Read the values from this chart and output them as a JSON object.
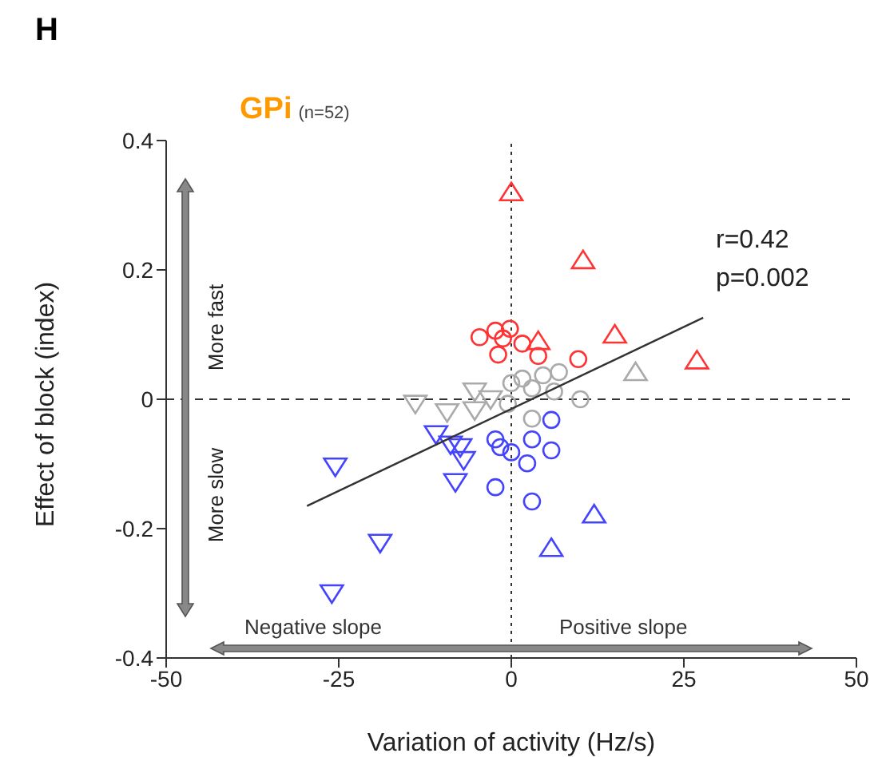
{
  "chart_data": {
    "type": "scatter",
    "title": "GPi",
    "subtitle": "(n=52)",
    "xlabel": "Variation of activity (Hz/s)",
    "ylabel": "Effect of block (index)",
    "annotations": [
      "H",
      "r=0.42",
      "p=0.002",
      "More fast",
      "More slow",
      "Negative slope",
      "Positive slope"
    ],
    "xlim": [
      -50,
      50
    ],
    "xticks": [
      -50,
      -25,
      0,
      25,
      50
    ],
    "ylim": [
      -0.4,
      0.4
    ],
    "yticks": [
      -0.4,
      -0.2,
      0,
      0.2,
      0.4
    ],
    "ref_lines": [
      {
        "axis": "x",
        "value": 0,
        "line_style": "dotted",
        "color": "#333333"
      },
      {
        "axis": "y",
        "value": 0,
        "line_style": "dashed",
        "color": "#333333"
      }
    ],
    "series": [
      {
        "color": "#ff3333",
        "marker": "triangle",
        "x": [
          0,
          10.4,
          15,
          26.9,
          3.9
        ],
        "values": [
          0.32,
          0.215,
          0.1,
          0.06,
          0.09
        ]
      },
      {
        "color": "#ff3333",
        "marker": "circle",
        "x": [
          -4.6,
          -2.3,
          -0.2,
          -1.2,
          1.6,
          -1.9,
          3.9,
          9.7
        ],
        "values": [
          0.096,
          0.106,
          0.109,
          0.094,
          0.086,
          0.069,
          0.067,
          0.062
        ]
      },
      {
        "color": "#aaaaaa",
        "marker": "triangle-down",
        "x": [
          -13.9,
          -9.3,
          -5.3,
          -5.3,
          -3
        ],
        "values": [
          -0.007,
          -0.02,
          -0.017,
          0.012,
          0
        ]
      },
      {
        "color": "#aaaaaa",
        "marker": "triangle",
        "x": [
          18
        ],
        "values": [
          0.042
        ]
      },
      {
        "color": "#aaaaaa",
        "marker": "circle",
        "x": [
          0,
          1.6,
          3,
          4.6,
          6.9,
          10,
          3,
          -0.5,
          6.2
        ],
        "values": [
          0.025,
          0.032,
          0.017,
          0.037,
          0.042,
          0,
          -0.03,
          -0.007,
          0.012
        ]
      },
      {
        "color": "#4444ff",
        "marker": "triangle-down",
        "x": [
          -10.9,
          -8.8,
          -7.4,
          -6.9,
          -8.1,
          -25.5,
          -19,
          -26
        ],
        "values": [
          -0.054,
          -0.07,
          -0.074,
          -0.094,
          -0.128,
          -0.104,
          -0.222,
          -0.3
        ]
      },
      {
        "color": "#4444ff",
        "marker": "triangle",
        "x": [
          12,
          5.8
        ],
        "values": [
          -0.178,
          -0.23
        ]
      },
      {
        "color": "#4444ff",
        "marker": "circle",
        "x": [
          5.8,
          -2.3,
          -1.6,
          3,
          5.8,
          2.3,
          0,
          -2.3,
          3
        ],
        "values": [
          -0.032,
          -0.062,
          -0.074,
          -0.062,
          -0.079,
          -0.099,
          -0.082,
          -0.136,
          -0.158
        ]
      },
      {
        "type": "line",
        "color": "#333333",
        "line_style": "solid",
        "marker": "none",
        "x": [
          -29.6,
          27.8
        ],
        "values": [
          -0.165,
          0.126
        ]
      }
    ]
  }
}
